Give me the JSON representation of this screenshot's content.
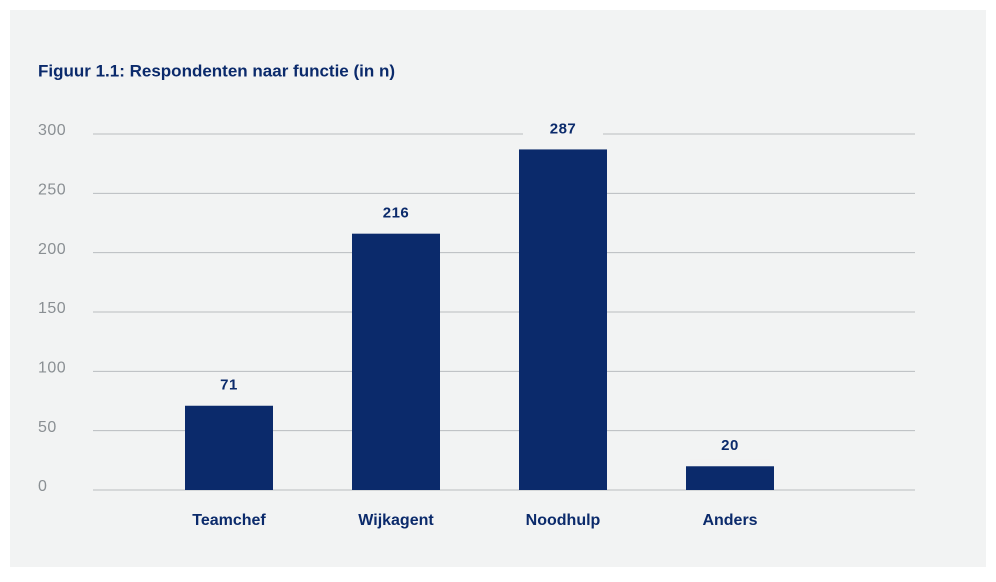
{
  "chart_data": {
    "type": "bar",
    "title": "Figuur 1.1: Respondenten naar functie (in n)",
    "categories": [
      "Teamchef",
      "Wijkagent",
      "Noodhulp",
      "Anders"
    ],
    "values": [
      71,
      216,
      287,
      20
    ],
    "color": "#0b2a6b",
    "ylim": [
      0,
      300
    ],
    "yticks": [
      0,
      50,
      100,
      150,
      200,
      250,
      300
    ],
    "grid": true
  }
}
